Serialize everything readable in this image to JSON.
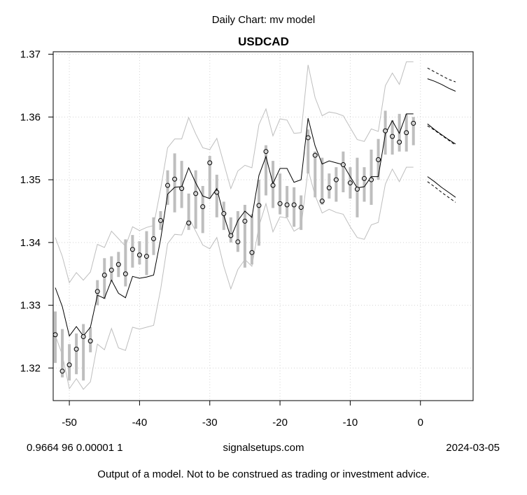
{
  "header": {
    "subtitle": "Daily Chart: mv model",
    "title": "USDCAD"
  },
  "footer": {
    "params": "0.9664 96 0.00001 1",
    "site": "signalsetups.com",
    "date": "2024-03-05",
    "disclaimer": "Output of a model.  Not to be construed as trading or investment advice."
  },
  "chart_data": {
    "type": "line",
    "title": "USDCAD",
    "xlim": [
      -52.3,
      7.5
    ],
    "ylim": [
      1.3148,
      1.3704
    ],
    "xticks": [
      -50,
      -40,
      -30,
      -20,
      -10,
      0
    ],
    "yticks": [
      1.32,
      1.33,
      1.34,
      1.35,
      1.36,
      1.37
    ],
    "xtick_labels": [
      "-50",
      "-40",
      "-30",
      "-20",
      "-10",
      "0"
    ],
    "ytick_labels": [
      "1.32",
      "1.33",
      "1.34",
      "1.35",
      "1.36",
      "1.37"
    ],
    "grid": true,
    "x": [
      -52,
      -51,
      -50,
      -49,
      -48,
      -47,
      -46,
      -45,
      -44,
      -43,
      -42,
      -41,
      -40,
      -39,
      -38,
      -37,
      -36,
      -35,
      -34,
      -33,
      -32,
      -31,
      -30,
      -29,
      -28,
      -27,
      -26,
      -25,
      -24,
      -23,
      -22,
      -21,
      -20,
      -19,
      -18,
      -17,
      -16,
      -15,
      -14,
      -13,
      -12,
      -11,
      -10,
      -9,
      -8,
      -7,
      -6,
      -5,
      -4,
      -3,
      -2,
      -1
    ],
    "close": [
      1.3253,
      1.3195,
      1.3205,
      1.323,
      1.325,
      1.3243,
      1.3322,
      1.3348,
      1.3356,
      1.3365,
      1.335,
      1.3389,
      1.338,
      1.3378,
      1.3406,
      1.3435,
      1.3491,
      1.3501,
      1.3486,
      1.3431,
      1.3478,
      1.3457,
      1.3527,
      1.348,
      1.3446,
      1.3411,
      1.3401,
      1.3434,
      1.3384,
      1.3459,
      1.3545,
      1.3491,
      1.3462,
      1.346,
      1.346,
      1.3456,
      1.3567,
      1.3539,
      1.3466,
      1.3487,
      1.35,
      1.3524,
      1.3495,
      1.3485,
      1.3502,
      1.35,
      1.3532,
      1.3578,
      1.3569,
      1.356,
      1.3575,
      1.359
    ],
    "range_high": [
      1.329,
      1.3262,
      1.3238,
      1.3255,
      1.327,
      1.3265,
      1.334,
      1.3375,
      1.3378,
      1.3385,
      1.3405,
      1.3412,
      1.3402,
      1.3418,
      1.344,
      1.345,
      1.3515,
      1.3542,
      1.353,
      1.3478,
      1.3515,
      1.349,
      1.3538,
      1.3508,
      1.3465,
      1.344,
      1.345,
      1.346,
      1.3445,
      1.35,
      1.3555,
      1.353,
      1.351,
      1.349,
      1.3488,
      1.3475,
      1.358,
      1.3545,
      1.3535,
      1.351,
      1.352,
      1.3545,
      1.352,
      1.3535,
      1.352,
      1.3548,
      1.3565,
      1.361,
      1.3595,
      1.3605,
      1.3605,
      1.36
    ],
    "range_low": [
      1.3208,
      1.3185,
      1.318,
      1.319,
      1.318,
      1.3225,
      1.33,
      1.331,
      1.3338,
      1.3345,
      1.333,
      1.336,
      1.3365,
      1.3348,
      1.338,
      1.342,
      1.346,
      1.3448,
      1.3455,
      1.342,
      1.3422,
      1.3415,
      1.347,
      1.344,
      1.342,
      1.34,
      1.3385,
      1.336,
      1.3365,
      1.3395,
      1.3475,
      1.3455,
      1.3445,
      1.344,
      1.3425,
      1.342,
      1.351,
      1.3472,
      1.346,
      1.347,
      1.3465,
      1.348,
      1.347,
      1.344,
      1.3465,
      1.346,
      1.35,
      1.354,
      1.354,
      1.3545,
      1.3545,
      1.3555
    ],
    "model": [
      1.3328,
      1.3298,
      1.3251,
      1.3266,
      1.3251,
      1.3265,
      1.3316,
      1.3311,
      1.334,
      1.3319,
      1.3312,
      1.3346,
      1.3343,
      1.3345,
      1.3348,
      1.3405,
      1.3477,
      1.3488,
      1.3489,
      1.3519,
      1.3495,
      1.3474,
      1.347,
      1.3486,
      1.3443,
      1.3408,
      1.3435,
      1.345,
      1.344,
      1.3507,
      1.3537,
      1.3494,
      1.3518,
      1.3518,
      1.3496,
      1.35,
      1.3598,
      1.3554,
      1.3525,
      1.353,
      1.3527,
      1.3524,
      1.3505,
      1.3487,
      1.3489,
      1.3505,
      1.3505,
      1.3573,
      1.3594,
      1.3574,
      1.3605,
      1.3605
    ],
    "band_upper": [
      1.3408,
      1.3378,
      1.3336,
      1.3352,
      1.334,
      1.3353,
      1.3397,
      1.3392,
      1.3418,
      1.3406,
      1.3394,
      1.3425,
      1.3419,
      1.3424,
      1.3427,
      1.3485,
      1.3551,
      1.3565,
      1.3565,
      1.3599,
      1.3573,
      1.3551,
      1.3548,
      1.3566,
      1.3526,
      1.3486,
      1.3514,
      1.3523,
      1.3519,
      1.3588,
      1.3613,
      1.357,
      1.3597,
      1.3595,
      1.3574,
      1.3575,
      1.3683,
      1.3631,
      1.3602,
      1.3608,
      1.3606,
      1.3602,
      1.3583,
      1.3564,
      1.3561,
      1.3581,
      1.3577,
      1.365,
      1.367,
      1.3652,
      1.3688,
      1.3688
    ],
    "band_lower": [
      1.3252,
      1.3221,
      1.3167,
      1.3183,
      1.3166,
      1.3178,
      1.3238,
      1.3229,
      1.3263,
      1.3232,
      1.3228,
      1.3265,
      1.3262,
      1.3265,
      1.3268,
      1.3325,
      1.3398,
      1.3413,
      1.3412,
      1.344,
      1.3418,
      1.3396,
      1.339,
      1.3408,
      1.3362,
      1.3326,
      1.3357,
      1.3373,
      1.3362,
      1.3426,
      1.3462,
      1.3417,
      1.3441,
      1.3439,
      1.3418,
      1.3425,
      1.3516,
      1.3475,
      1.3447,
      1.3453,
      1.3448,
      1.3445,
      1.3425,
      1.3408,
      1.3405,
      1.3428,
      1.3432,
      1.3493,
      1.3517,
      1.3497,
      1.352,
      1.352
    ],
    "forecast": {
      "x": [
        1,
        2,
        3,
        4,
        5
      ],
      "center": [
        1.3589,
        1.358,
        1.3572,
        1.3564,
        1.3557
      ],
      "center_dash": [
        1.3586,
        1.3579,
        1.3571,
        1.3563,
        1.3555
      ],
      "upper": [
        1.3661,
        1.3657,
        1.3652,
        1.3646,
        1.3641
      ],
      "upper_dash": [
        1.3678,
        1.3672,
        1.3666,
        1.366,
        1.3656
      ],
      "lower": [
        1.3505,
        1.3497,
        1.3488,
        1.348,
        1.3472
      ],
      "lower_dash": [
        1.3497,
        1.3489,
        1.348,
        1.3472,
        1.3464
      ]
    },
    "colors": {
      "range_bar": "#bebebe",
      "band": "#bebebe",
      "model": "#000000",
      "grid": "#d3d3d3",
      "point_fill": "#d3d3d3"
    }
  }
}
